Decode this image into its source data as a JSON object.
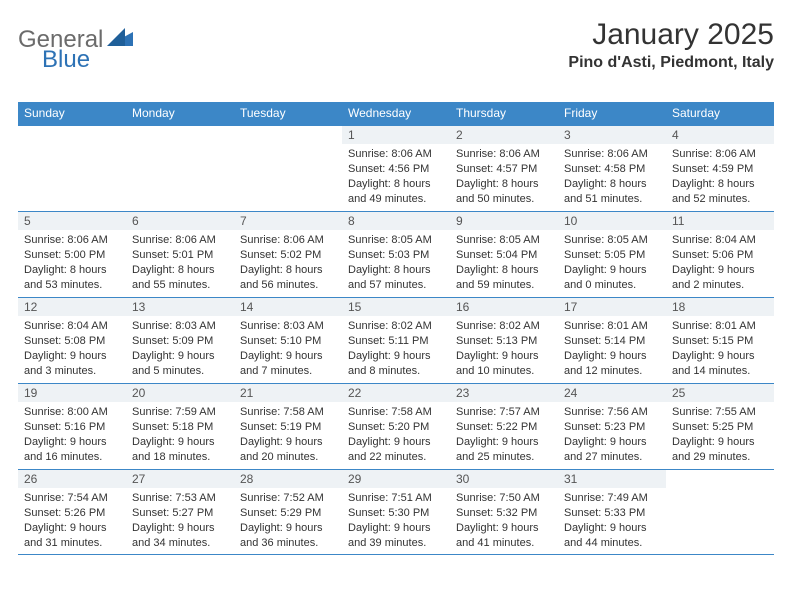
{
  "brand": {
    "general": "General",
    "blue": "Blue"
  },
  "header": {
    "month": "January",
    "year": "2025",
    "month_year": "January 2025",
    "location": "Pino d'Asti, Piedmont, Italy"
  },
  "colors": {
    "header_band": "#3c87c7",
    "day_band": "#eef2f5",
    "text": "#333333",
    "logo_gray": "#6b6b6b",
    "logo_blue": "#2d72b5"
  },
  "weekdays": [
    "Sunday",
    "Monday",
    "Tuesday",
    "Wednesday",
    "Thursday",
    "Friday",
    "Saturday"
  ],
  "calendar": {
    "cols": 7,
    "rows": 5,
    "first_weekday_index": 3,
    "days": [
      {
        "n": 1,
        "sunrise": "8:06 AM",
        "sunset": "4:56 PM",
        "dl": "8 hours and 49 minutes."
      },
      {
        "n": 2,
        "sunrise": "8:06 AM",
        "sunset": "4:57 PM",
        "dl": "8 hours and 50 minutes."
      },
      {
        "n": 3,
        "sunrise": "8:06 AM",
        "sunset": "4:58 PM",
        "dl": "8 hours and 51 minutes."
      },
      {
        "n": 4,
        "sunrise": "8:06 AM",
        "sunset": "4:59 PM",
        "dl": "8 hours and 52 minutes."
      },
      {
        "n": 5,
        "sunrise": "8:06 AM",
        "sunset": "5:00 PM",
        "dl": "8 hours and 53 minutes."
      },
      {
        "n": 6,
        "sunrise": "8:06 AM",
        "sunset": "5:01 PM",
        "dl": "8 hours and 55 minutes."
      },
      {
        "n": 7,
        "sunrise": "8:06 AM",
        "sunset": "5:02 PM",
        "dl": "8 hours and 56 minutes."
      },
      {
        "n": 8,
        "sunrise": "8:05 AM",
        "sunset": "5:03 PM",
        "dl": "8 hours and 57 minutes."
      },
      {
        "n": 9,
        "sunrise": "8:05 AM",
        "sunset": "5:04 PM",
        "dl": "8 hours and 59 minutes."
      },
      {
        "n": 10,
        "sunrise": "8:05 AM",
        "sunset": "5:05 PM",
        "dl": "9 hours and 0 minutes."
      },
      {
        "n": 11,
        "sunrise": "8:04 AM",
        "sunset": "5:06 PM",
        "dl": "9 hours and 2 minutes."
      },
      {
        "n": 12,
        "sunrise": "8:04 AM",
        "sunset": "5:08 PM",
        "dl": "9 hours and 3 minutes."
      },
      {
        "n": 13,
        "sunrise": "8:03 AM",
        "sunset": "5:09 PM",
        "dl": "9 hours and 5 minutes."
      },
      {
        "n": 14,
        "sunrise": "8:03 AM",
        "sunset": "5:10 PM",
        "dl": "9 hours and 7 minutes."
      },
      {
        "n": 15,
        "sunrise": "8:02 AM",
        "sunset": "5:11 PM",
        "dl": "9 hours and 8 minutes."
      },
      {
        "n": 16,
        "sunrise": "8:02 AM",
        "sunset": "5:13 PM",
        "dl": "9 hours and 10 minutes."
      },
      {
        "n": 17,
        "sunrise": "8:01 AM",
        "sunset": "5:14 PM",
        "dl": "9 hours and 12 minutes."
      },
      {
        "n": 18,
        "sunrise": "8:01 AM",
        "sunset": "5:15 PM",
        "dl": "9 hours and 14 minutes."
      },
      {
        "n": 19,
        "sunrise": "8:00 AM",
        "sunset": "5:16 PM",
        "dl": "9 hours and 16 minutes."
      },
      {
        "n": 20,
        "sunrise": "7:59 AM",
        "sunset": "5:18 PM",
        "dl": "9 hours and 18 minutes."
      },
      {
        "n": 21,
        "sunrise": "7:58 AM",
        "sunset": "5:19 PM",
        "dl": "9 hours and 20 minutes."
      },
      {
        "n": 22,
        "sunrise": "7:58 AM",
        "sunset": "5:20 PM",
        "dl": "9 hours and 22 minutes."
      },
      {
        "n": 23,
        "sunrise": "7:57 AM",
        "sunset": "5:22 PM",
        "dl": "9 hours and 25 minutes."
      },
      {
        "n": 24,
        "sunrise": "7:56 AM",
        "sunset": "5:23 PM",
        "dl": "9 hours and 27 minutes."
      },
      {
        "n": 25,
        "sunrise": "7:55 AM",
        "sunset": "5:25 PM",
        "dl": "9 hours and 29 minutes."
      },
      {
        "n": 26,
        "sunrise": "7:54 AM",
        "sunset": "5:26 PM",
        "dl": "9 hours and 31 minutes."
      },
      {
        "n": 27,
        "sunrise": "7:53 AM",
        "sunset": "5:27 PM",
        "dl": "9 hours and 34 minutes."
      },
      {
        "n": 28,
        "sunrise": "7:52 AM",
        "sunset": "5:29 PM",
        "dl": "9 hours and 36 minutes."
      },
      {
        "n": 29,
        "sunrise": "7:51 AM",
        "sunset": "5:30 PM",
        "dl": "9 hours and 39 minutes."
      },
      {
        "n": 30,
        "sunrise": "7:50 AM",
        "sunset": "5:32 PM",
        "dl": "9 hours and 41 minutes."
      },
      {
        "n": 31,
        "sunrise": "7:49 AM",
        "sunset": "5:33 PM",
        "dl": "9 hours and 44 minutes."
      }
    ]
  },
  "labels": {
    "sunrise_prefix": "Sunrise: ",
    "sunset_prefix": "Sunset: ",
    "daylight_prefix": "Daylight: "
  }
}
